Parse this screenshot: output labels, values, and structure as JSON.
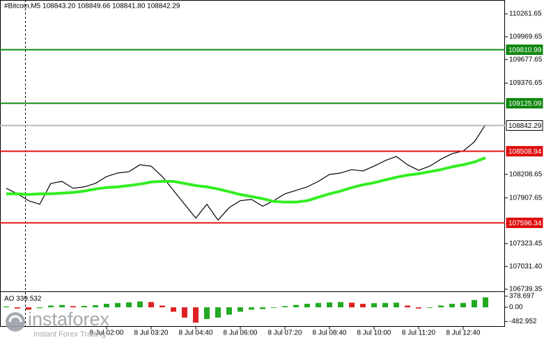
{
  "chart_data": [
    {
      "type": "line",
      "title": "#Bitcoin,M5  108843.20 108849.66 108841.80 108842.29",
      "categories": [
        null,
        null,
        null,
        null,
        null,
        null,
        null,
        null,
        null,
        "8 Jul 02:00",
        null,
        null,
        null,
        "8 Jul 03:20",
        null,
        null,
        null,
        "8 Jul 04:40",
        null,
        null,
        null,
        "8 Jul 06:00",
        null,
        null,
        null,
        "8 Jul 07:20",
        null,
        null,
        null,
        "8 Jul 08:40",
        null,
        null,
        null,
        "8 Jul 10:00",
        null,
        null,
        null,
        "8 Jul 11:20",
        null,
        null,
        null,
        "8 Jul 12:40",
        null,
        null
      ],
      "series": [
        {
          "color": "#000000",
          "values": [
            108031,
            107960,
            107872,
            107827,
            108093,
            108119,
            108031,
            108049,
            108093,
            108181,
            108226,
            108243,
            108332,
            108314,
            108181,
            108004,
            107827,
            107650,
            107827,
            107624,
            107783,
            107872,
            107889,
            107801,
            107872,
            107960,
            108004,
            108049,
            108119,
            108208,
            108226,
            108270,
            108252,
            108314,
            108385,
            108438,
            108332,
            108261,
            108314,
            108403,
            108473,
            108509,
            108624,
            108845
          ]
        },
        {
          "color": "#33ee22",
          "values": [
            107960,
            107960,
            107951,
            107960,
            107960,
            107969,
            107978,
            107995,
            108022,
            108040,
            108049,
            108066,
            108084,
            108111,
            108119,
            108119,
            108093,
            108066,
            108049,
            108022,
            107987,
            107951,
            107925,
            107898,
            107863,
            107854,
            107854,
            107872,
            107916,
            107960,
            107995,
            108040,
            108075,
            108102,
            108137,
            108172,
            108199,
            108217,
            108243,
            108270,
            108305,
            108332,
            108367,
            108420
          ]
        }
      ],
      "ylim": [
        106721.6,
        110439.5
      ],
      "yticks": [
        110261.65,
        109969.65,
        109677.65,
        109376.65,
        108208.65,
        107907.65,
        107323.45,
        {
          "value": 107031.4,
          "label": "107031.40"
        },
        106739.35
      ],
      "levels": [
        {
          "value": 109810.99,
          "color": "#118811"
        },
        {
          "value": 109125.09,
          "color": "#118811"
        },
        {
          "value": 108842.29,
          "color": "#b8b8b8"
        },
        {
          "value": 108508.94,
          "color": "#e01010"
        },
        {
          "value": 107596.34,
          "color": "#e01010"
        }
      ]
    },
    {
      "type": "bar",
      "title": "AO 339.532",
      "values": [
        30,
        -40,
        -80,
        -30,
        60,
        80,
        40,
        50,
        70,
        120,
        150,
        170,
        200,
        180,
        60,
        -150,
        -350,
        -520,
        -400,
        -350,
        -250,
        -150,
        -80,
        -60,
        -20,
        40,
        80,
        120,
        150,
        170,
        180,
        160,
        120,
        140,
        150,
        160,
        60,
        -40,
        -20,
        60,
        120,
        150,
        250,
        339.532
      ],
      "up_color": "#22aa22",
      "down_color": "#dd2222",
      "ylim": [
        -663,
        474
      ],
      "yticks": [
        378.697,
        {
          "value": 0,
          "label": "0.00"
        },
        -482.952
      ]
    }
  ],
  "watermark": {
    "brand": "instaforex",
    "tagline": "Instant Forex Trading"
  }
}
